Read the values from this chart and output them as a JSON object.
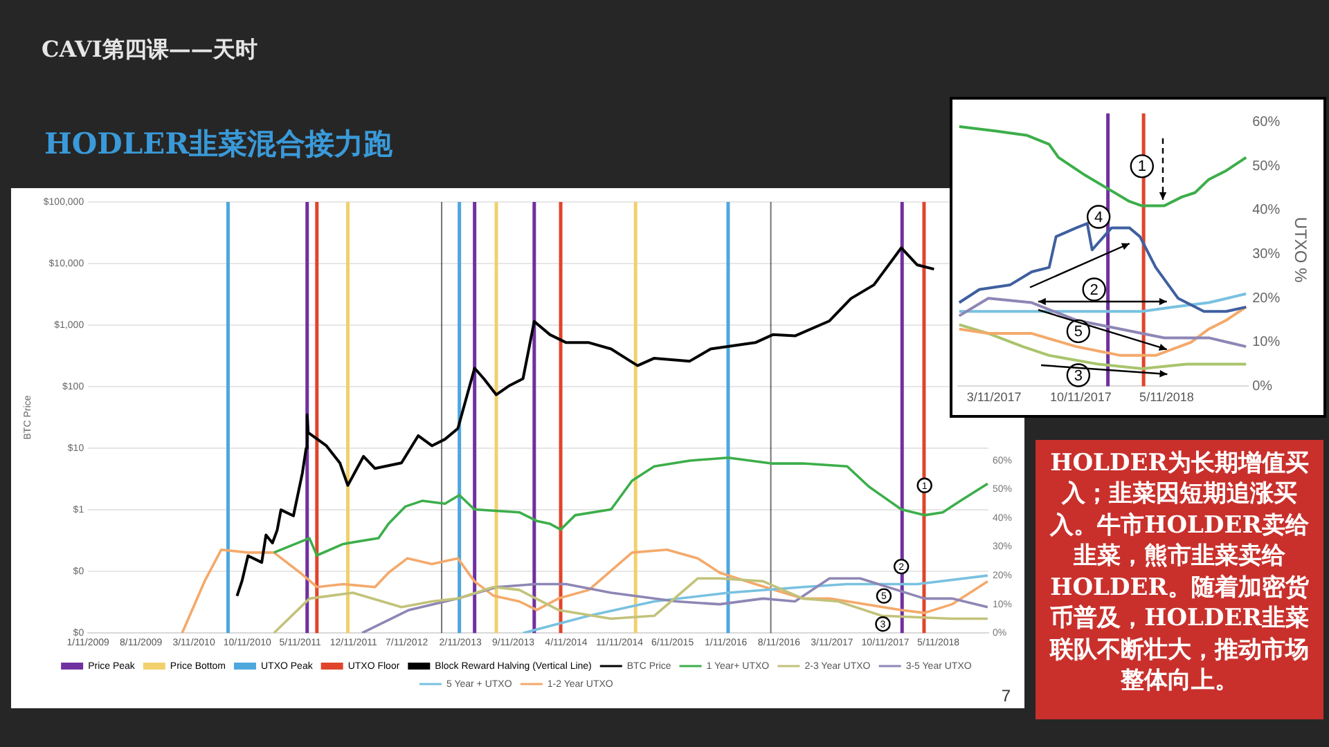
{
  "chart_data": [
    {
      "type": "line",
      "title": "CAVI第四课——天时",
      "subtitle": "HODLER韭菜混合接力跑",
      "ylabel": "BTC Price",
      "log": "y",
      "grid": "y",
      "legend": "bottom",
      "marker": "none",
      "xlim": [
        "2009-01-11",
        "2018-11-28"
      ],
      "xticks": [
        {
          "value": "2009-01-11",
          "label": "1/11/2009"
        },
        {
          "value": "2009-08-11",
          "label": "8/11/2009"
        },
        {
          "value": "2010-03-11",
          "label": "3/11/2010"
        },
        {
          "value": "2010-10-11",
          "label": "10/11/2010"
        },
        {
          "value": "2011-05-11",
          "label": "5/11/2011"
        },
        {
          "value": "2011-12-11",
          "label": "12/11/2011"
        },
        {
          "value": "2012-07-11",
          "label": "7/11/2012"
        },
        {
          "value": "2013-02-11",
          "label": "2/11/2013"
        },
        {
          "value": "2013-09-11",
          "label": "9/11/2013"
        },
        {
          "value": "2014-04-11",
          "label": "4/11/2014"
        },
        {
          "value": "2014-11-11",
          "label": "11/11/2014"
        },
        {
          "value": "2015-06-11",
          "label": "6/11/2015"
        },
        {
          "value": "2016-01-11",
          "label": "1/11/2016"
        },
        {
          "value": "2016-08-11",
          "label": "8/11/2016"
        },
        {
          "value": "2017-03-11",
          "label": "3/11/2017"
        },
        {
          "value": "2017-10-11",
          "label": "10/11/2017"
        },
        {
          "value": "2018-05-11",
          "label": "5/11/2018"
        }
      ],
      "ylim": [
        0.01,
        100000
      ],
      "yticks": [
        {
          "value": 0.01,
          "label": "$0"
        },
        {
          "value": 0.1,
          "label": "$0"
        },
        {
          "value": 1,
          "label": "$1"
        },
        {
          "value": 10,
          "label": "$10"
        },
        {
          "value": 100,
          "label": "$100"
        },
        {
          "value": 1000,
          "label": "$1,000"
        },
        {
          "value": 10000,
          "label": "$10,000"
        },
        {
          "value": 100000,
          "label": "$100,000"
        }
      ],
      "y2lim": [
        0,
        150
      ],
      "y2ticks": [
        {
          "value": 0,
          "label": "0%"
        },
        {
          "value": 10,
          "label": "10%"
        },
        {
          "value": 20,
          "label": "20%"
        },
        {
          "value": 30,
          "label": "30%"
        },
        {
          "value": 40,
          "label": "40%"
        },
        {
          "value": 50,
          "label": "50%"
        },
        {
          "value": 60,
          "label": "60%"
        }
      ],
      "ref_lines": [
        {
          "axis": "x",
          "value": "2011-06-08",
          "label": "Price Peak",
          "color": "#7030a0"
        },
        {
          "axis": "x",
          "value": "2013-04-09",
          "label": null,
          "color": "#7030a0"
        },
        {
          "axis": "x",
          "value": "2013-12-04",
          "label": null,
          "color": "#7030a0"
        },
        {
          "axis": "x",
          "value": "2017-12-17",
          "label": null,
          "color": "#7030a0"
        },
        {
          "axis": "x",
          "value": "2011-11-18",
          "label": "Price Bottom",
          "color": "#f2d06b"
        },
        {
          "axis": "x",
          "value": "2013-07-05",
          "label": null,
          "color": "#f2d06b"
        },
        {
          "axis": "x",
          "value": "2015-01-14",
          "label": null,
          "color": "#f2d06b"
        },
        {
          "axis": "x",
          "value": "2010-07-26",
          "label": "UTXO Peak",
          "color": "#4ea7dd"
        },
        {
          "axis": "x",
          "value": "2013-02-07",
          "label": null,
          "color": "#4ea7dd"
        },
        {
          "axis": "x",
          "value": "2016-01-20",
          "label": null,
          "color": "#4ea7dd"
        },
        {
          "axis": "x",
          "value": "2011-07-17",
          "label": "UTXO Floor",
          "color": "#e0452b"
        },
        {
          "axis": "x",
          "value": "2014-03-20",
          "label": null,
          "color": "#e0452b"
        },
        {
          "axis": "x",
          "value": "2018-03-15",
          "label": null,
          "color": "#e0452b"
        },
        {
          "axis": "x",
          "value": "2012-11-28",
          "label": "Block Reward Halving (Vertical Line)",
          "color": "#000000"
        },
        {
          "axis": "x",
          "value": "2016-07-09",
          "label": null,
          "color": "#000000"
        }
      ],
      "series": [
        {
          "name": "BTC Price",
          "color": "#000000",
          "x": [
            "2010-08-31",
            "2010-09-20",
            "2010-10-14",
            "2010-12-08",
            "2010-12-25",
            "2011-01-20",
            "2011-02-08",
            "2011-02-23",
            "2011-04-14",
            "2011-05-20",
            "2011-06-04",
            "2011-06-08",
            "2011-06-12",
            "2011-08-24",
            "2011-10-17",
            "2011-11-18",
            "2012-01-20",
            "2012-03-06",
            "2012-06-20",
            "2012-08-26",
            "2012-10-20",
            "2012-12-11",
            "2013-02-01",
            "2013-04-09",
            "2013-05-16",
            "2013-07-05",
            "2013-08-28",
            "2013-10-20",
            "2013-12-04",
            "2014-02-05",
            "2014-04-11",
            "2014-07-11",
            "2014-10-08",
            "2015-01-22",
            "2015-03-30",
            "2015-08-19",
            "2015-11-11",
            "2016-05-08",
            "2016-07-17",
            "2016-10-14",
            "2017-03-01",
            "2017-05-26",
            "2017-08-26",
            "2017-12-14",
            "2018-02-16",
            "2018-04-24"
          ],
          "values": [
            0.04,
            0.07,
            0.18,
            0.14,
            0.39,
            0.29,
            0.47,
            1,
            0.8,
            4,
            10,
            35,
            18,
            11,
            5.8,
            2.5,
            7.4,
            4.7,
            5.8,
            16,
            11,
            14,
            21,
            200,
            135,
            74,
            105,
            135,
            1150,
            700,
            520,
            520,
            410,
            220,
            290,
            260,
            410,
            520,
            700,
            670,
            1170,
            2700,
            4500,
            18000,
            9500,
            8100
          ]
        },
        {
          "name": "1 Year+ UTXO",
          "color": "#3cae4a",
          "axis": "y2",
          "x": [
            "2011-01-26",
            "2011-06-17",
            "2011-07-17",
            "2011-10-31",
            "2012-03-20",
            "2012-04-29",
            "2012-07-05",
            "2012-09-11",
            "2012-12-11",
            "2013-02-07",
            "2013-04-08",
            "2013-10-05",
            "2013-12-14",
            "2014-02-05",
            "2014-03-20",
            "2014-05-17",
            "2014-10-08",
            "2014-12-31",
            "2015-03-30",
            "2015-08-19",
            "2016-01-20",
            "2016-07-11",
            "2016-11-14",
            "2017-05-11",
            "2017-08-05",
            "2017-12-14",
            "2018-03-17",
            "2018-05-29",
            "2018-08-08",
            "2018-11-25"
          ],
          "values": [
            28,
            33,
            27,
            31,
            33,
            38,
            44,
            46,
            45,
            48,
            43,
            42,
            39,
            38,
            36,
            41,
            43,
            53,
            58,
            60,
            61,
            59,
            59,
            58,
            51,
            43,
            41,
            42,
            46,
            52
          ]
        },
        {
          "name": "2-3 Year UTXO",
          "color": "#c2c27a",
          "axis": "y2",
          "x": [
            "2011-01-26",
            "2011-06-17",
            "2011-12-08",
            "2012-06-20",
            "2012-10-20",
            "2013-02-01",
            "2013-06-23",
            "2013-10-05",
            "2014-03-11",
            "2014-10-08",
            "2015-03-30",
            "2015-09-20",
            "2015-12-17",
            "2016-06-08",
            "2016-11-14",
            "2017-04-05",
            "2017-09-26",
            "2018-07-05",
            "2018-11-25"
          ],
          "values": [
            0,
            12,
            14,
            9,
            11,
            12,
            16,
            15,
            8,
            5,
            6,
            19,
            19,
            18,
            12,
            11,
            6,
            5,
            5
          ]
        },
        {
          "name": "3-5 Year UTXO",
          "color": "#8e86b5",
          "axis": "y2",
          "x": [
            "2012-01-14",
            "2012-07-20",
            "2013-02-01",
            "2013-07-08",
            "2013-12-08",
            "2014-04-11",
            "2014-10-08",
            "2015-06-26",
            "2015-12-17",
            "2016-06-08",
            "2016-10-14",
            "2017-03-01",
            "2017-07-02",
            "2018-03-17",
            "2018-07-05",
            "2018-11-25"
          ],
          "values": [
            0,
            8,
            12,
            16,
            17,
            17,
            14,
            11,
            10,
            12,
            11,
            19,
            19,
            12,
            12,
            9
          ]
        },
        {
          "name": "5 Year + UTXO",
          "color": "#79c1e0",
          "axis": "y2",
          "x": [
            "2013-10-20",
            "2014-07-11",
            "2015-03-30",
            "2016-01-20",
            "2016-11-14",
            "2017-05-11",
            "2018-02-16",
            "2018-11-25"
          ],
          "values": [
            0,
            6,
            11,
            14,
            16,
            17,
            17,
            20
          ]
        },
        {
          "name": "1-2 Year UTXO",
          "color": "#f4a96b",
          "axis": "y2",
          "x": [
            "2010-01-23",
            "2010-04-23",
            "2010-06-29",
            "2010-10-14",
            "2011-01-26",
            "2011-05-11",
            "2011-07-17",
            "2011-10-31",
            "2012-03-06",
            "2012-04-29",
            "2012-07-14",
            "2012-10-20",
            "2013-02-01",
            "2013-04-08",
            "2013-06-23",
            "2013-10-05",
            "2013-12-14",
            "2014-03-11",
            "2014-07-11",
            "2014-12-31",
            "2015-05-20",
            "2015-09-20",
            "2015-12-17",
            "2016-05-08",
            "2016-11-14",
            "2017-03-01",
            "2017-12-14",
            "2018-03-17",
            "2018-07-05",
            "2018-11-25"
          ],
          "values": [
            0,
            18,
            29,
            28,
            28,
            21,
            16,
            17,
            16,
            21,
            26,
            24,
            26,
            18,
            13,
            11,
            8,
            12,
            15,
            28,
            29,
            26,
            21,
            17,
            12,
            12,
            8,
            7,
            10,
            18
          ]
        }
      ],
      "annotations": [
        {
          "text": "1",
          "x": "2018-03-17",
          "y": 2.5
        },
        {
          "text": "2",
          "x": "2017-12-14",
          "y": 0.12
        },
        {
          "text": "5",
          "x": "2017-10-05",
          "y": 0.04
        },
        {
          "text": "3",
          "x": "2017-10-01",
          "y": 0.014
        },
        "7"
      ]
    },
    {
      "type": "line",
      "ylabel": "UTXO %",
      "marker": "none",
      "xlim": [
        "2016-12-12",
        "2018-11-28"
      ],
      "xticks": [
        {
          "value": "2017-03-11",
          "label": "3/11/2017"
        },
        {
          "value": "2017-10-11",
          "label": "10/11/2017"
        },
        {
          "value": "2018-05-11",
          "label": "5/11/2018"
        }
      ],
      "ylim": [
        0,
        62
      ],
      "yticks": [
        {
          "value": 0,
          "label": "0%"
        },
        {
          "value": 10,
          "label": "10%"
        },
        {
          "value": 20,
          "label": "20%"
        },
        {
          "value": 30,
          "label": "30%"
        },
        {
          "value": 40,
          "label": "40%"
        },
        {
          "value": 50,
          "label": "50%"
        },
        {
          "value": 60,
          "label": "60%"
        }
      ],
      "ref_lines": [
        {
          "axis": "x",
          "value": "2017-12-17",
          "label": null,
          "color": "#7030a0"
        },
        {
          "axis": "x",
          "value": "2018-03-15",
          "label": null,
          "color": "#e0452b"
        }
      ],
      "series": [
        {
          "color": "#3cae4a",
          "x": [
            "2016-12-15",
            "2017-03-16",
            "2017-06-01",
            "2017-07-25",
            "2017-08-17",
            "2017-10-21",
            "2017-12-15",
            "2018-02-08",
            "2018-03-11",
            "2018-05-05",
            "2018-06-17",
            "2018-07-20",
            "2018-08-23",
            "2018-10-05",
            "2018-11-23"
          ],
          "values": [
            59,
            58,
            57,
            55,
            52,
            48,
            45,
            42,
            41,
            41,
            43,
            44,
            47,
            49,
            52
          ]
        },
        {
          "color": "#3f5f9f",
          "x": [
            "2016-12-15",
            "2017-02-03",
            "2017-04-19",
            "2017-06-12",
            "2017-07-25",
            "2017-08-11",
            "2017-09-30",
            "2017-10-27",
            "2017-11-08",
            "2017-12-26",
            "2018-02-08",
            "2018-03-06",
            "2018-04-14",
            "2018-06-08",
            "2018-08-11",
            "2018-10-05",
            "2018-11-23"
          ],
          "values": [
            19,
            22,
            23,
            26,
            27,
            34,
            36,
            37,
            31,
            36,
            36,
            34,
            27,
            20,
            17,
            17,
            18
          ]
        },
        {
          "color": "#8e86b5",
          "x": [
            "2016-12-15",
            "2017-02-25",
            "2017-06-12",
            "2017-09-30",
            "2018-01-17",
            "2018-05-05",
            "2018-08-23",
            "2018-11-23"
          ],
          "values": [
            16,
            20,
            19,
            15,
            13,
            11,
            11,
            9
          ]
        },
        {
          "color": "#79c1e0",
          "x": [
            "2016-12-15",
            "2017-04-19",
            "2017-09-30",
            "2018-03-11",
            "2018-05-26",
            "2018-08-23",
            "2018-11-23"
          ],
          "values": [
            17,
            17,
            17,
            17,
            18,
            19,
            21
          ]
        },
        {
          "color": "#f4a96b",
          "x": [
            "2016-12-15",
            "2017-02-25",
            "2017-06-12",
            "2017-09-30",
            "2018-01-17",
            "2018-04-14",
            "2018-07-10",
            "2018-08-23",
            "2018-10-05",
            "2018-11-23"
          ],
          "values": [
            13,
            12,
            12,
            9,
            7,
            7,
            10,
            13,
            15,
            18
          ]
        },
        {
          "color": "#a9c46c",
          "x": [
            "2016-12-15",
            "2017-02-25",
            "2017-05-21",
            "2017-07-25",
            "2017-11-24",
            "2018-03-11",
            "2018-06-29",
            "2018-11-23"
          ],
          "values": [
            14,
            12,
            9,
            7,
            5,
            4,
            5,
            5
          ]
        }
      ],
      "annotations": [
        {
          "text": "1",
          "x": "2018-03-11",
          "y": 50
        },
        {
          "text": "4",
          "x": "2017-11-24",
          "y": 38.5
        },
        {
          "text": "2",
          "x": "2017-11-13",
          "y": 22
        },
        {
          "text": "5",
          "x": "2017-10-05",
          "y": 12.5
        },
        {
          "text": "3",
          "x": "2017-10-05",
          "y": 2.5
        }
      ]
    },
    {
      "type": "other",
      "annotations": [
        "HOLDER为长期增值买入；韭菜因短期追涨买入。牛市HOLDER卖给韭菜，熊市韭菜卖给HOLDER。随着加密货币普及，HOLDER韭菜联队不断壮大，推动市场整体向上。"
      ]
    }
  ]
}
